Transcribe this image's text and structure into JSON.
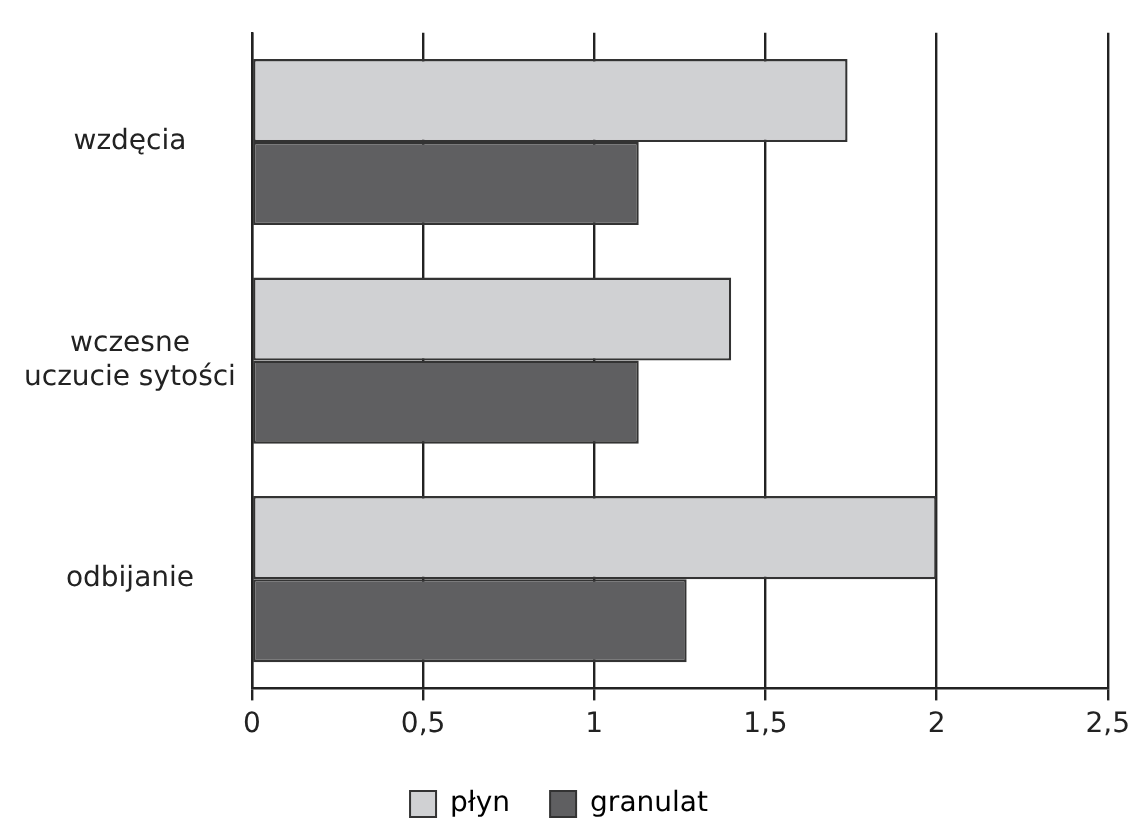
{
  "chart_data": {
    "type": "bar",
    "orientation": "horizontal",
    "categories": [
      "wzdęcia",
      "wczesne\nuczucie sytości",
      "odbijanie"
    ],
    "series": [
      {
        "name": "płyn",
        "color": "#d0d1d3",
        "values": [
          1.74,
          1.4,
          2.0
        ]
      },
      {
        "name": "granulat",
        "color": "#5f5f61",
        "values": [
          1.13,
          1.13,
          1.27
        ]
      }
    ],
    "xlim": [
      0,
      2.5
    ],
    "xticks": [
      {
        "value": 0,
        "label": "0"
      },
      {
        "value": 0.5,
        "label": "0,5"
      },
      {
        "value": 1,
        "label": "1"
      },
      {
        "value": 1.5,
        "label": "1,5"
      },
      {
        "value": 2,
        "label": "2"
      },
      {
        "value": 2.5,
        "label": "2,5"
      }
    ],
    "grid": "x",
    "legend": "bottom"
  }
}
